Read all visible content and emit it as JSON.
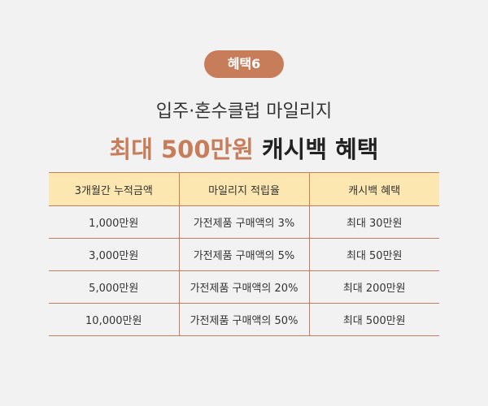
{
  "badge": "혜택6",
  "subtitle": "입주·혼수클럽 마일리지",
  "title": {
    "highlight": "최대 500만원",
    "rest": "캐시백 혜택"
  },
  "table": {
    "headers": [
      "3개월간 누적금액",
      "마일리지 적립율",
      "캐시백 혜택"
    ],
    "rows": [
      [
        "1,000만원",
        "가전제품 구매액의 3%",
        "최대 30만원"
      ],
      [
        "3,000만원",
        "가전제품 구매액의 5%",
        "최대 50만원"
      ],
      [
        "5,000만원",
        "가전제품 구매액의 20%",
        "최대 200만원"
      ],
      [
        "10,000만원",
        "가전제품 구매액의 50%",
        "최대 500만원"
      ]
    ]
  },
  "colors": {
    "accent": "#c87d5a",
    "header_bg": "#fde7b0",
    "background": "#f2f2f2"
  }
}
